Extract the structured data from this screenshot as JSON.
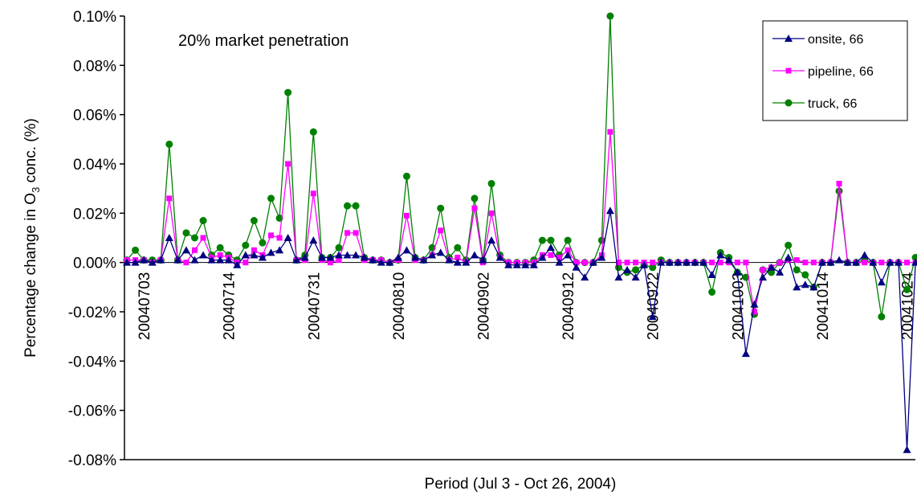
{
  "chart_data": {
    "type": "line",
    "annotation": "20% market penetration",
    "x_label": "Period (Jul 3 - Oct 26, 2004)",
    "y_label": [
      "Percentage change in O",
      "3",
      " conc. (%)"
    ],
    "ylim": [
      -0.08,
      0.1
    ],
    "yticks": [
      {
        "value": 0.1,
        "label": "0.10%"
      },
      {
        "value": 0.08,
        "label": "0.08%"
      },
      {
        "value": 0.06,
        "label": "0.06%"
      },
      {
        "value": 0.04,
        "label": "0.04%"
      },
      {
        "value": 0.02,
        "label": "0.02%"
      },
      {
        "value": 0,
        "label": "0.00%"
      },
      {
        "value": -0.02,
        "label": "-0.02%"
      },
      {
        "value": -0.04,
        "label": "-0.04%"
      },
      {
        "value": -0.06,
        "label": "-0.06%"
      },
      {
        "value": -0.08,
        "label": "-0.08%"
      }
    ],
    "legend": "upper right",
    "categories": [
      null,
      null,
      "20040703",
      null,
      null,
      null,
      null,
      null,
      null,
      null,
      null,
      null,
      "20040714",
      null,
      null,
      null,
      null,
      null,
      null,
      null,
      null,
      null,
      "20040731",
      null,
      null,
      null,
      null,
      null,
      null,
      null,
      null,
      null,
      "20040810",
      null,
      null,
      null,
      null,
      null,
      null,
      null,
      null,
      null,
      "20040902",
      null,
      null,
      null,
      null,
      null,
      null,
      null,
      null,
      null,
      "20040912",
      null,
      null,
      null,
      null,
      null,
      null,
      null,
      null,
      null,
      "20040922",
      null,
      null,
      null,
      null,
      null,
      null,
      null,
      null,
      null,
      "20041003",
      null,
      null,
      null,
      null,
      null,
      null,
      null,
      null,
      null,
      "20041014",
      null,
      null,
      null,
      null,
      null,
      null,
      null,
      null,
      null,
      "20041024",
      null
    ],
    "series": [
      {
        "name": "onsite, 66",
        "color": "#000080",
        "marker": "triangle",
        "values": [
          0,
          0,
          0.001,
          0,
          0.001,
          0.01,
          0.001,
          0.005,
          0.001,
          0.003,
          0.001,
          0.001,
          0.001,
          -0.001,
          0.003,
          0.003,
          0.002,
          0.004,
          0.005,
          0.01,
          0.001,
          0.002,
          0.009,
          0.002,
          0.002,
          0.003,
          0.003,
          0.003,
          0.002,
          0.001,
          0,
          0,
          0.002,
          0.005,
          0.002,
          0.001,
          0.003,
          0.004,
          0.001,
          0,
          0,
          0.003,
          0.001,
          0.009,
          0.002,
          -0.001,
          -0.001,
          -0.001,
          -0.001,
          0.002,
          0.006,
          0,
          0.003,
          -0.002,
          -0.006,
          0,
          0.002,
          0.021,
          -0.006,
          -0.003,
          -0.006,
          -0.001,
          -0.022,
          0,
          0,
          0,
          0,
          0,
          0,
          -0.005,
          0.003,
          0.001,
          -0.004,
          -0.037,
          -0.017,
          -0.006,
          -0.002,
          -0.004,
          0.002,
          -0.01,
          -0.009,
          -0.01,
          0,
          0,
          0.001,
          0,
          0,
          0.003,
          0,
          -0.008,
          0,
          0,
          -0.076,
          0
        ]
      },
      {
        "name": "pipeline, 66",
        "color": "#ff00ff",
        "marker": "square",
        "values": [
          0.001,
          0.001,
          0.001,
          0,
          0.001,
          0.026,
          0.001,
          0,
          0.005,
          0.01,
          0.002,
          0.003,
          0.002,
          0,
          0,
          0.005,
          0.003,
          0.011,
          0.01,
          0.04,
          0.001,
          0.001,
          0.028,
          0.001,
          0,
          0.001,
          0.012,
          0.012,
          0.001,
          0.001,
          0.001,
          0,
          0.001,
          0.019,
          0.001,
          0.001,
          0.003,
          0.013,
          0.001,
          0.002,
          0,
          0.022,
          0,
          0.02,
          0.002,
          0,
          0,
          0,
          0,
          0.003,
          0.003,
          0.002,
          0.005,
          0,
          0,
          0,
          0.003,
          0.053,
          0,
          0,
          0,
          0,
          0,
          0,
          0,
          0,
          0,
          0,
          0,
          0,
          0,
          0,
          0,
          0,
          -0.02,
          -0.003,
          -0.002,
          0,
          0.001,
          0.001,
          0,
          0,
          0,
          0,
          0.032,
          0,
          0,
          0,
          0,
          0,
          0,
          0,
          0,
          0
        ]
      },
      {
        "name": "truck, 66",
        "color": "#008000",
        "marker": "circle",
        "values": [
          0.001,
          0.005,
          0.001,
          0.001,
          0.001,
          0.048,
          0.001,
          0.012,
          0.01,
          0.017,
          0.003,
          0.006,
          0.003,
          0.001,
          0.007,
          0.017,
          0.008,
          0.026,
          0.018,
          0.069,
          0.001,
          0.003,
          0.053,
          0.002,
          0.002,
          0.006,
          0.023,
          0.023,
          0.002,
          0.001,
          0.001,
          0,
          0.001,
          0.035,
          0.002,
          0.001,
          0.006,
          0.022,
          0.002,
          0.006,
          0.001,
          0.026,
          0.001,
          0.032,
          0.003,
          0,
          0,
          0,
          0.001,
          0.009,
          0.009,
          0.003,
          0.009,
          0,
          0,
          0,
          0.009,
          0.1,
          -0.002,
          -0.004,
          -0.003,
          -0.001,
          -0.002,
          0.001,
          0,
          0,
          0,
          0,
          0,
          -0.012,
          0.004,
          0.002,
          -0.004,
          -0.006,
          -0.021,
          -0.003,
          -0.004,
          0,
          0.007,
          -0.003,
          -0.005,
          -0.01,
          0,
          0,
          0.029,
          0,
          0,
          0.001,
          0,
          -0.022,
          0,
          0,
          -0.011,
          0.002
        ]
      }
    ]
  }
}
